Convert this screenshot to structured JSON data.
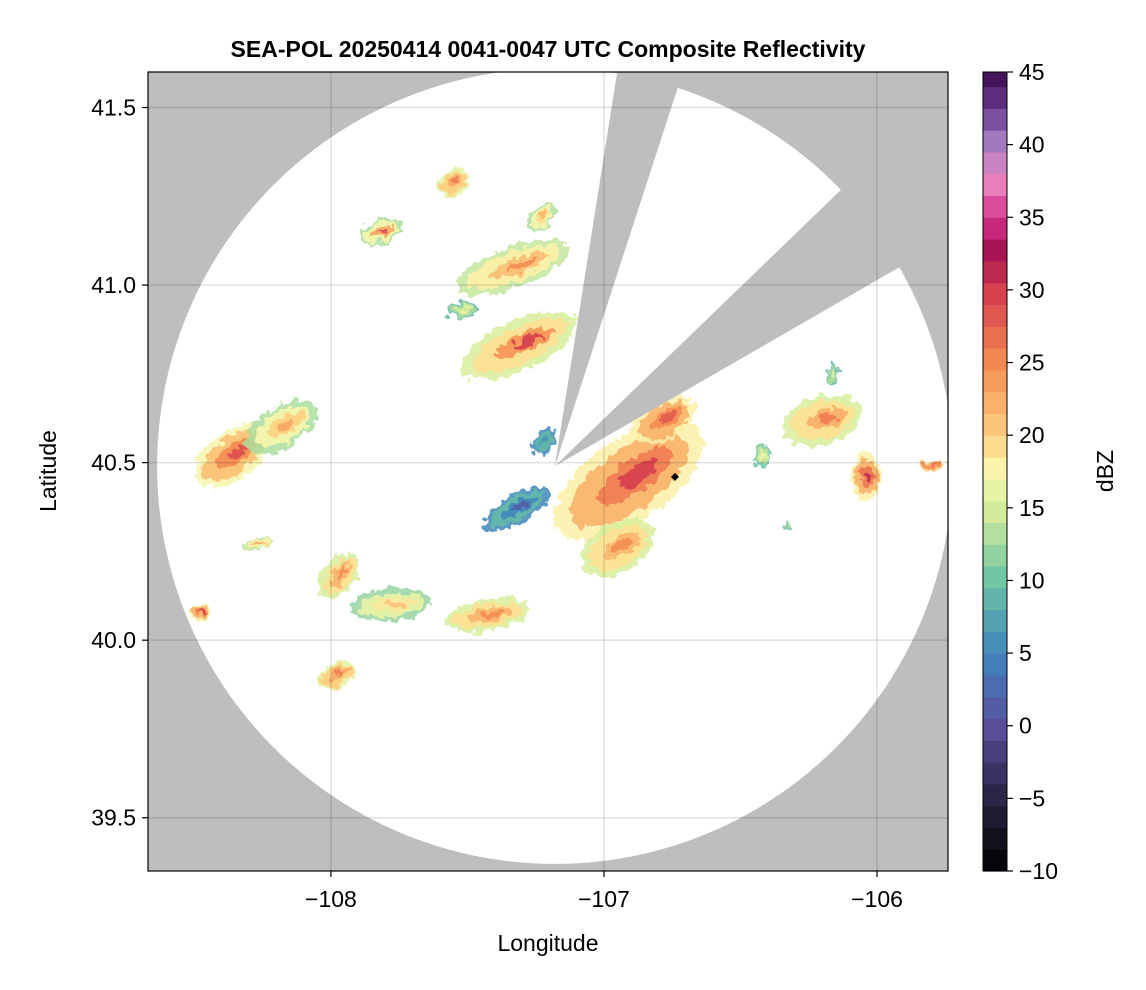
{
  "chart_data": {
    "type": "heatmap",
    "title": "SEA-POL 20250414 0041-0047 UTC Composite Reflectivity",
    "xlabel": "Longitude",
    "ylabel": "Latitude",
    "xlim": [
      -108.67,
      -105.74
    ],
    "ylim": [
      39.35,
      41.6
    ],
    "x_ticks": [
      -108,
      -107,
      -106
    ],
    "x_tick_labels": [
      "−108",
      "−107",
      "−106"
    ],
    "y_ticks": [
      39.5,
      40.0,
      40.5,
      41.0,
      41.5
    ],
    "y_tick_labels": [
      "39.5",
      "40.0",
      "40.5",
      "41.0",
      "41.5"
    ],
    "grid": true,
    "background_color": "#bebebe",
    "coverage_color": "#ffffff",
    "radar": {
      "center": [
        -107.18,
        40.49
      ],
      "range_deg_lat": 1.12,
      "blocked_sectors_deg_cw_from_north": [
        [
          9,
          18
        ],
        [
          46,
          60
        ]
      ]
    },
    "colorbar": {
      "label": "dBZ",
      "min": -10,
      "max": 45,
      "step": 1.5,
      "ticks": [
        -10,
        -5,
        0,
        5,
        10,
        15,
        20,
        25,
        30,
        35,
        40,
        45
      ],
      "tick_labels": [
        "−10",
        "−5",
        "0",
        "5",
        "10",
        "15",
        "20",
        "25",
        "30",
        "35",
        "40",
        "45"
      ],
      "colormap": "spectral_reversed",
      "stops": [
        [
          -10,
          "#000000"
        ],
        [
          -5,
          "#2b2343"
        ],
        [
          0,
          "#5a4f9e"
        ],
        [
          5,
          "#3f86bc"
        ],
        [
          10,
          "#6cc5a4"
        ],
        [
          15,
          "#d7ee9c"
        ],
        [
          17.5,
          "#fbf8b0"
        ],
        [
          20,
          "#fdd081"
        ],
        [
          25,
          "#f48c51"
        ],
        [
          30,
          "#d53e4f"
        ],
        [
          32.5,
          "#a3124e"
        ],
        [
          35,
          "#d6338d"
        ],
        [
          37.5,
          "#ea86c0"
        ],
        [
          40,
          "#a880c0"
        ],
        [
          42.5,
          "#6a3a93"
        ],
        [
          45,
          "#3a0a4a"
        ]
      ]
    },
    "echoes": [
      {
        "lon": -108.36,
        "lat": 40.52,
        "rx": 0.15,
        "ry": 0.06,
        "rot": -35,
        "dbz": 21,
        "core": 29
      },
      {
        "lon": -108.18,
        "lat": 40.6,
        "rx": 0.14,
        "ry": 0.05,
        "rot": -30,
        "dbz": 17,
        "core": 23
      },
      {
        "lon": -108.27,
        "lat": 40.27,
        "rx": 0.05,
        "ry": 0.015,
        "rot": -10,
        "dbz": 18,
        "core": 24
      },
      {
        "lon": -108.48,
        "lat": 40.08,
        "rx": 0.04,
        "ry": 0.02,
        "rot": 0,
        "dbz": 22,
        "core": 30
      },
      {
        "lon": -107.97,
        "lat": 40.18,
        "rx": 0.09,
        "ry": 0.04,
        "rot": -55,
        "dbz": 19,
        "core": 25
      },
      {
        "lon": -107.78,
        "lat": 40.1,
        "rx": 0.14,
        "ry": 0.04,
        "rot": -5,
        "dbz": 16,
        "core": 21
      },
      {
        "lon": -107.43,
        "lat": 40.07,
        "rx": 0.15,
        "ry": 0.04,
        "rot": -10,
        "dbz": 19,
        "core": 25
      },
      {
        "lon": -107.98,
        "lat": 39.9,
        "rx": 0.07,
        "ry": 0.03,
        "rot": -30,
        "dbz": 20,
        "core": 26
      },
      {
        "lon": -107.55,
        "lat": 41.29,
        "rx": 0.06,
        "ry": 0.03,
        "rot": -40,
        "dbz": 20,
        "core": 26
      },
      {
        "lon": -107.82,
        "lat": 41.15,
        "rx": 0.08,
        "ry": 0.03,
        "rot": -20,
        "dbz": 17,
        "core": 29
      },
      {
        "lon": -107.33,
        "lat": 41.05,
        "rx": 0.21,
        "ry": 0.05,
        "rot": -20,
        "dbz": 18,
        "core": 25
      },
      {
        "lon": -107.23,
        "lat": 41.19,
        "rx": 0.06,
        "ry": 0.025,
        "rot": -45,
        "dbz": 17,
        "core": 22
      },
      {
        "lon": -107.31,
        "lat": 40.83,
        "rx": 0.22,
        "ry": 0.06,
        "rot": -25,
        "dbz": 19,
        "core": 30
      },
      {
        "lon": -107.52,
        "lat": 40.93,
        "rx": 0.06,
        "ry": 0.02,
        "rot": 0,
        "dbz": 13,
        "core": 18
      },
      {
        "lon": -106.91,
        "lat": 40.45,
        "rx": 0.3,
        "ry": 0.1,
        "rot": -35,
        "dbz": 22,
        "core": 30
      },
      {
        "lon": -106.78,
        "lat": 40.62,
        "rx": 0.12,
        "ry": 0.05,
        "rot": -30,
        "dbz": 22,
        "core": 28
      },
      {
        "lon": -106.95,
        "lat": 40.26,
        "rx": 0.14,
        "ry": 0.06,
        "rot": -30,
        "dbz": 19,
        "core": 25
      },
      {
        "lon": -107.32,
        "lat": 40.37,
        "rx": 0.13,
        "ry": 0.035,
        "rot": -30,
        "dbz": 9,
        "core": 1
      },
      {
        "lon": -107.22,
        "lat": 40.56,
        "rx": 0.05,
        "ry": 0.025,
        "rot": -60,
        "dbz": 9,
        "core": 6
      },
      {
        "lon": -106.2,
        "lat": 40.62,
        "rx": 0.14,
        "ry": 0.06,
        "rot": -15,
        "dbz": 19,
        "core": 26
      },
      {
        "lon": -106.04,
        "lat": 40.46,
        "rx": 0.05,
        "ry": 0.06,
        "rot": 0,
        "dbz": 22,
        "core": 31
      },
      {
        "lon": -105.8,
        "lat": 40.49,
        "rx": 0.04,
        "ry": 0.015,
        "rot": 0,
        "dbz": 24,
        "core": 26
      },
      {
        "lon": -106.16,
        "lat": 40.75,
        "rx": 0.02,
        "ry": 0.03,
        "rot": 0,
        "dbz": 13,
        "core": 16
      },
      {
        "lon": -106.33,
        "lat": 40.32,
        "rx": 0.01,
        "ry": 0.01,
        "rot": 0,
        "dbz": 12,
        "core": 14
      },
      {
        "lon": -106.42,
        "lat": 40.52,
        "rx": 0.03,
        "ry": 0.03,
        "rot": 0,
        "dbz": 14,
        "core": 17
      }
    ],
    "marker": {
      "lon": -106.74,
      "lat": 40.46,
      "shape": "diamond",
      "color": "#000000"
    }
  }
}
